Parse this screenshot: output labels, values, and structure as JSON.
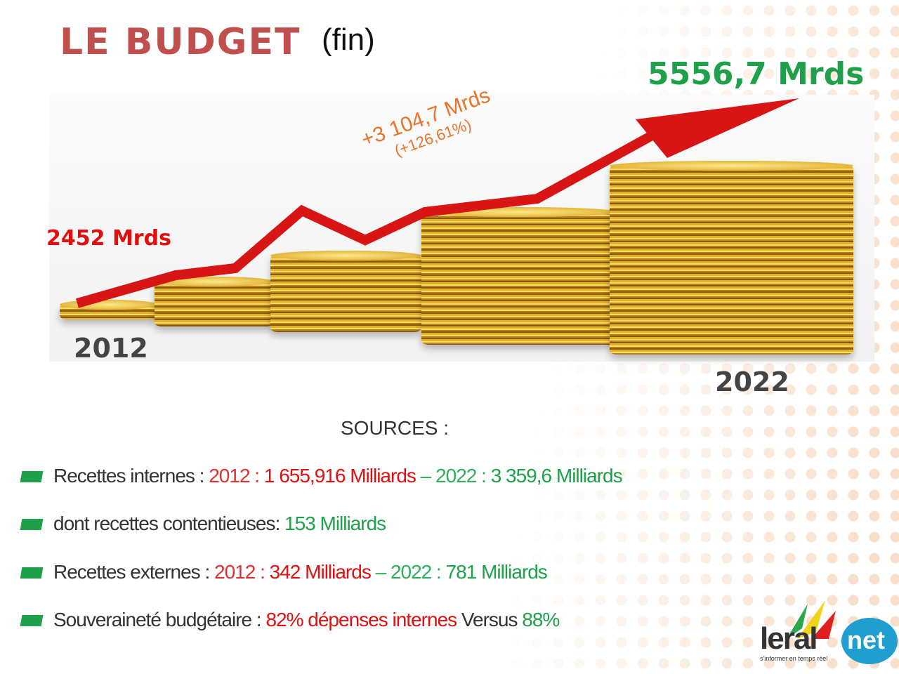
{
  "title": "LE BUDGET",
  "title_suffix": "(fin)",
  "start_value": "2452 Mrds",
  "end_value": "5556,7 Mrds",
  "increase": "+3 104,7 Mrds",
  "increase_pct": "(+126,61%)",
  "year_start": "2012",
  "year_end": "2022",
  "sources_label": "SOURCES :",
  "bullets": [
    {
      "label": "Recettes internes : ",
      "y1": "2012 : ",
      "v1": "1 655,916 Milliards",
      "sep": "  – ",
      "y2": "2022 : ",
      "v2": "3 359,6 Milliards"
    },
    {
      "label": "dont recettes contentieuses: ",
      "v1": "153 Milliards"
    },
    {
      "label": "Recettes externes : ",
      "y1": "2012 : ",
      "v1": "342 Milliards",
      "sep": " – ",
      "y2": "2022 : ",
      "v2": "781 Milliards"
    },
    {
      "label": "Souveraineté budgétaire : ",
      "v1": "82% dépenses internes",
      "mid": " Versus ",
      "v2": "88%"
    }
  ],
  "logo": {
    "brand": "leral",
    "suffix": "net",
    "tagline": "s'informer en temps réel"
  }
}
